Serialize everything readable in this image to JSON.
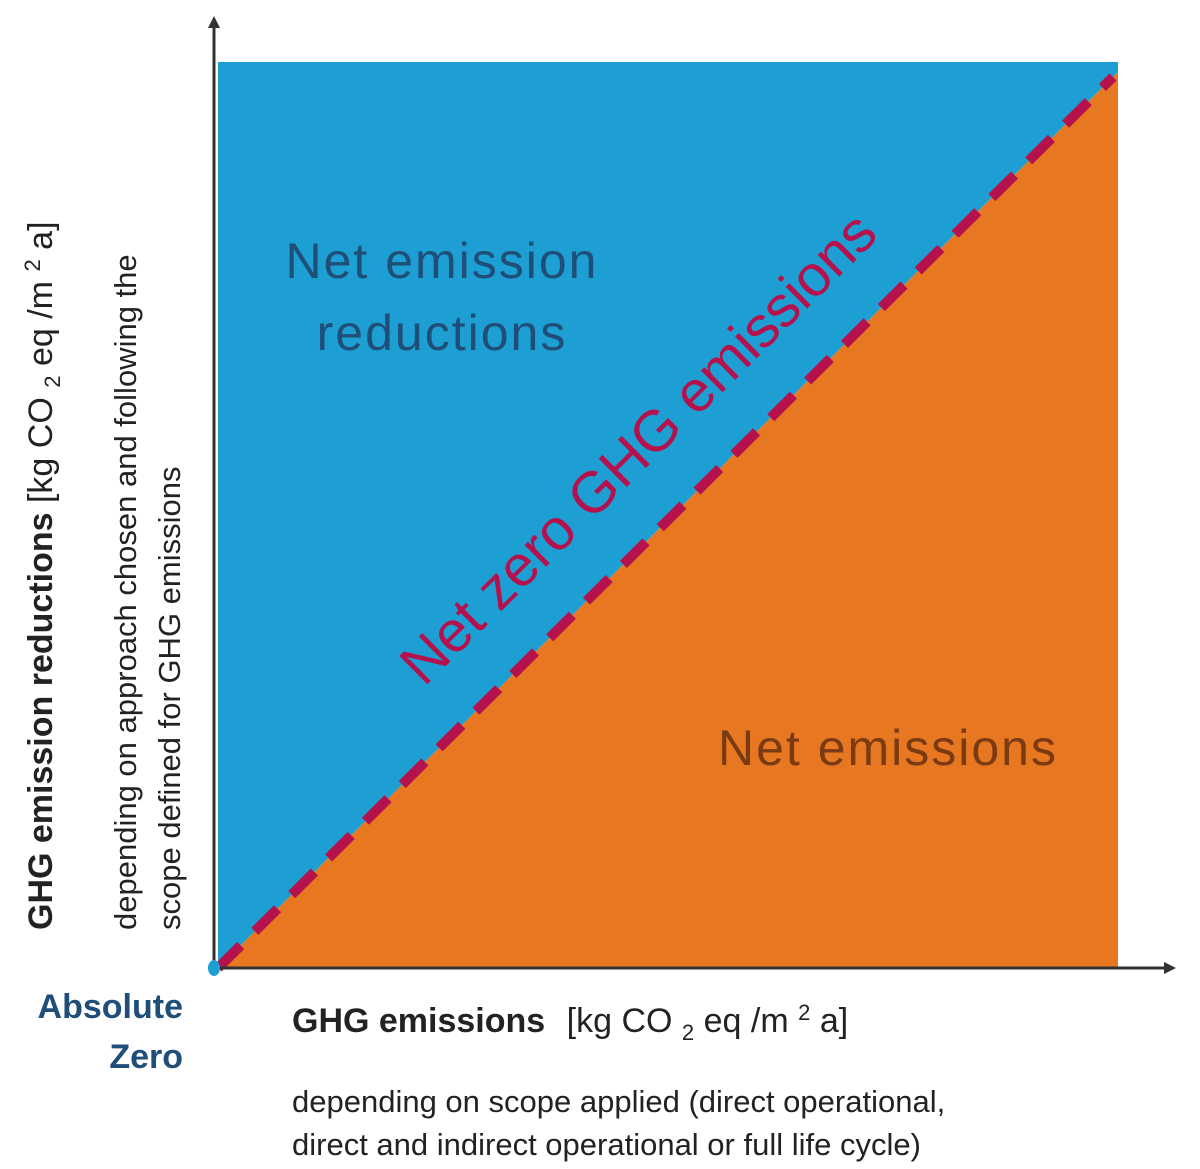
{
  "diagram": {
    "regions": {
      "upper_label_line1": "Net emission",
      "upper_label_line2": "reductions",
      "lower_label": "Net emissions",
      "upper_color": "#1d9fd4",
      "lower_color": "#e87722"
    },
    "diagonal": {
      "label": "Net zero GHG emissions",
      "color": "#b5124d"
    },
    "origin": {
      "line1": "Absolute",
      "line2": "Zero",
      "color": "#1f4e79"
    },
    "x_axis": {
      "title_bold": "GHG  emissions",
      "unit_pre": "[kg CO",
      "unit_sub": "2",
      "unit_mid": " eq /m",
      "unit_sup": "2",
      "unit_post": "a]",
      "note_line1": "depending on scope applied (direct operational,",
      "note_line2": "direct and indirect operational or full life cycle)"
    },
    "y_axis": {
      "title_bold": "GHG emission reductions",
      "unit_pre": " [kg CO",
      "unit_sub": "2",
      "unit_mid": " eq /m",
      "unit_sup": "2",
      "unit_post": "a]",
      "note_line1": "depending on approach chosen and following the",
      "note_line2": "scope defined for GHG emissions"
    }
  }
}
